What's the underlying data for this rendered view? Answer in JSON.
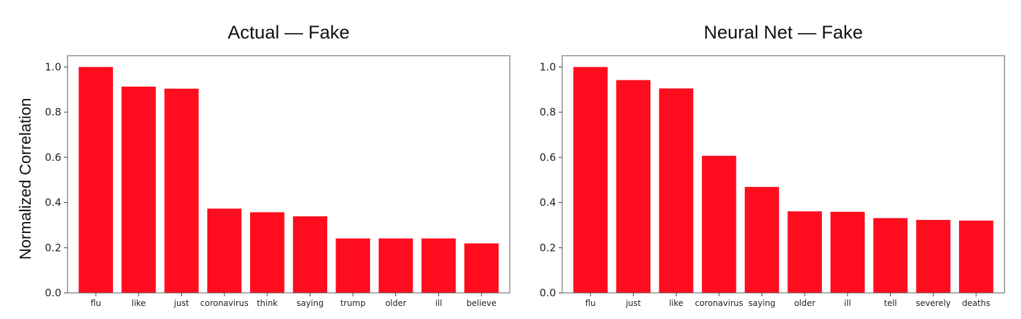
{
  "chart_data": [
    {
      "type": "bar",
      "title": "Actual — Fake",
      "xlabel": "",
      "ylabel": "Normalized Correlation",
      "categories": [
        "flu",
        "like",
        "just",
        "coronavirus",
        "think",
        "saying",
        "trump",
        "older",
        "ill",
        "believe"
      ],
      "values": [
        1.0,
        0.913,
        0.904,
        0.373,
        0.357,
        0.339,
        0.241,
        0.241,
        0.241,
        0.219
      ],
      "ylim": [
        0,
        1.05
      ],
      "yticks": [
        0.0,
        0.2,
        0.4,
        0.6,
        0.8,
        1.0
      ],
      "grid": false,
      "color": "#ff0d1f"
    },
    {
      "type": "bar",
      "title": "Neural Net — Fake",
      "xlabel": "",
      "ylabel": "",
      "categories": [
        "flu",
        "just",
        "like",
        "coronavirus",
        "saying",
        "older",
        "ill",
        "tell",
        "severely",
        "deaths"
      ],
      "values": [
        1.0,
        0.942,
        0.905,
        0.607,
        0.469,
        0.361,
        0.359,
        0.331,
        0.323,
        0.32
      ],
      "ylim": [
        0,
        1.05
      ],
      "yticks": [
        0.0,
        0.2,
        0.4,
        0.6,
        0.8,
        1.0
      ],
      "grid": false,
      "color": "#ff0d1f"
    }
  ]
}
